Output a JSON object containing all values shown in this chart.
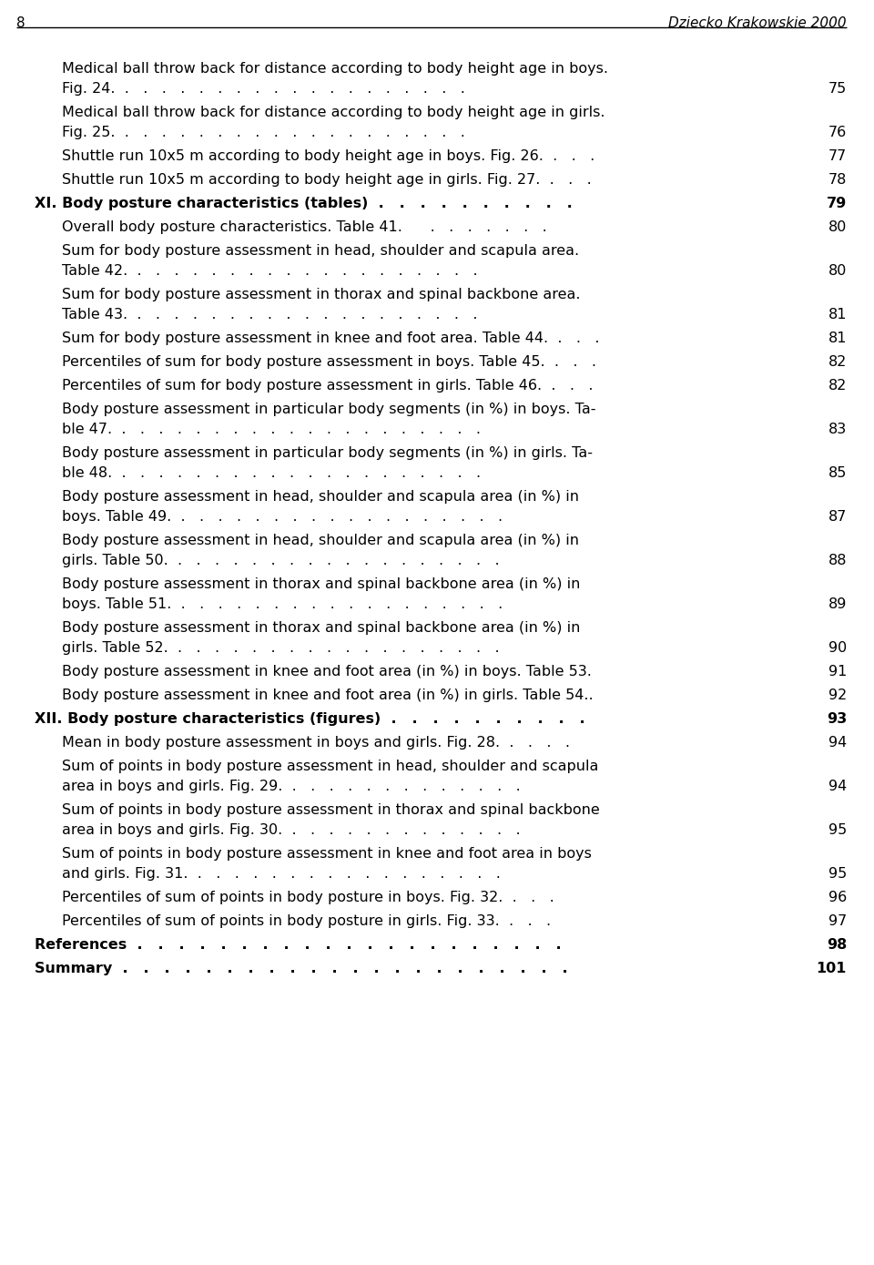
{
  "page_number": "8",
  "header_title": "Dziecko Krakowskie 2000",
  "background_color": "#ffffff",
  "text_color": "#000000",
  "entries": [
    {
      "line1": "Medical ball throw back for distance according to body height age in boys.",
      "line2": "Fig. 24.  .   .   .   .   .   .   .   .   .   .   .   .   .   .   .   .   .   .   .",
      "page": "75",
      "bold": false,
      "two_line": true,
      "indent": true
    },
    {
      "line1": "Medical ball throw back for distance according to body height age in girls.",
      "line2": "Fig. 25.  .   .   .   .   .   .   .   .   .   .   .   .   .   .   .   .   .   .   .",
      "page": "76",
      "bold": false,
      "two_line": true,
      "indent": true
    },
    {
      "line1": "Shuttle run 10x5 m according to body height age in boys. Fig. 26.  .   .   .",
      "line2": null,
      "page": "77",
      "bold": false,
      "two_line": false,
      "indent": true
    },
    {
      "line1": "Shuttle run 10x5 m according to body height age in girls. Fig. 27.  .   .   .",
      "line2": null,
      "page": "78",
      "bold": false,
      "two_line": false,
      "indent": true
    },
    {
      "line1": "XI. Body posture characteristics (tables)  .   .   .   .   .   .   .   .   .   .",
      "line2": null,
      "page": "79",
      "bold": true,
      "two_line": false,
      "indent": false
    },
    {
      "line1": "Overall body posture characteristics. Table 41.      .   .   .   .   .   .   .",
      "line2": null,
      "page": "80",
      "bold": false,
      "two_line": false,
      "indent": true
    },
    {
      "line1": "Sum for body posture assessment in head, shoulder and scapula area.",
      "line2": "Table 42.  .   .   .   .   .   .   .   .   .   .   .   .   .   .   .   .   .   .   .",
      "page": "80",
      "bold": false,
      "two_line": true,
      "indent": true
    },
    {
      "line1": "Sum for body posture assessment in thorax and spinal backbone area.",
      "line2": "Table 43.  .   .   .   .   .   .   .   .   .   .   .   .   .   .   .   .   .   .   .",
      "page": "81",
      "bold": false,
      "two_line": true,
      "indent": true
    },
    {
      "line1": "Sum for body posture assessment in knee and foot area. Table 44.  .   .   .",
      "line2": null,
      "page": "81",
      "bold": false,
      "two_line": false,
      "indent": true
    },
    {
      "line1": "Percentiles of sum for body posture assessment in boys. Table 45.  .   .   .",
      "line2": null,
      "page": "82",
      "bold": false,
      "two_line": false,
      "indent": true
    },
    {
      "line1": "Percentiles of sum for body posture assessment in girls. Table 46.  .   .   .",
      "line2": null,
      "page": "82",
      "bold": false,
      "two_line": false,
      "indent": true
    },
    {
      "line1": "Body posture assessment in particular body segments (in %) in boys. Ta-",
      "line2": "ble 47.  .   .   .   .   .   .   .   .   .   .   .   .   .   .   .   .   .   .   .   .",
      "page": "83",
      "bold": false,
      "two_line": true,
      "indent": true
    },
    {
      "line1": "Body posture assessment in particular body segments (in %) in girls. Ta-",
      "line2": "ble 48.  .   .   .   .   .   .   .   .   .   .   .   .   .   .   .   .   .   .   .   .",
      "page": "85",
      "bold": false,
      "two_line": true,
      "indent": true
    },
    {
      "line1": "Body posture assessment in head, shoulder and scapula area (in %) in",
      "line2": "boys. Table 49.  .   .   .   .   .   .   .   .   .   .   .   .   .   .   .   .   .   .",
      "page": "87",
      "bold": false,
      "two_line": true,
      "indent": true
    },
    {
      "line1": "Body posture assessment in head, shoulder and scapula area (in %) in",
      "line2": "girls. Table 50.  .   .   .   .   .   .   .   .   .   .   .   .   .   .   .   .   .   .",
      "page": "88",
      "bold": false,
      "two_line": true,
      "indent": true
    },
    {
      "line1": "Body posture assessment in thorax and spinal backbone area (in %) in",
      "line2": "boys. Table 51.  .   .   .   .   .   .   .   .   .   .   .   .   .   .   .   .   .   .",
      "page": "89",
      "bold": false,
      "two_line": true,
      "indent": true
    },
    {
      "line1": "Body posture assessment in thorax and spinal backbone area (in %) in",
      "line2": "girls. Table 52.  .   .   .   .   .   .   .   .   .   .   .   .   .   .   .   .   .   .",
      "page": "90",
      "bold": false,
      "two_line": true,
      "indent": true
    },
    {
      "line1": "Body posture assessment in knee and foot area (in %) in boys. Table 53.",
      "line2": null,
      "page": "91",
      "bold": false,
      "two_line": false,
      "indent": true
    },
    {
      "line1": "Body posture assessment in knee and foot area (in %) in girls. Table 54..",
      "line2": null,
      "page": "92",
      "bold": false,
      "two_line": false,
      "indent": true
    },
    {
      "line1": "XII. Body posture characteristics (figures)  .   .   .   .   .   .   .   .   .   .",
      "line2": null,
      "page": "93",
      "bold": true,
      "two_line": false,
      "indent": false
    },
    {
      "line1": "Mean in body posture assessment in boys and girls. Fig. 28.  .   .   .   .",
      "line2": null,
      "page": "94",
      "bold": false,
      "two_line": false,
      "indent": true
    },
    {
      "line1": "Sum of points in body posture assessment in head, shoulder and scapula",
      "line2": "area in boys and girls. Fig. 29.  .   .   .   .   .   .   .   .   .   .   .   .   .",
      "page": "94",
      "bold": false,
      "two_line": true,
      "indent": true
    },
    {
      "line1": "Sum of points in body posture assessment in thorax and spinal backbone",
      "line2": "area in boys and girls. Fig. 30.  .   .   .   .   .   .   .   .   .   .   .   .   .",
      "page": "95",
      "bold": false,
      "two_line": true,
      "indent": true
    },
    {
      "line1": "Sum of points in body posture assessment in knee and foot area in boys",
      "line2": "and girls. Fig. 31.  .   .   .   .   .   .   .   .   .   .   .   .   .   .   .   .   .",
      "page": "95",
      "bold": false,
      "two_line": true,
      "indent": true
    },
    {
      "line1": "Percentiles of sum of points in body posture in boys. Fig. 32.  .   .   .",
      "line2": null,
      "page": "96",
      "bold": false,
      "two_line": false,
      "indent": true
    },
    {
      "line1": "Percentiles of sum of points in body posture in girls. Fig. 33.  .   .   .",
      "line2": null,
      "page": "97",
      "bold": false,
      "two_line": false,
      "indent": true
    },
    {
      "line1": "References  .   .   .   .   .   .   .   .   .   .   .   .   .   .   .   .   .   .   .   .   .",
      "line2": null,
      "page": "98",
      "bold": true,
      "two_line": false,
      "indent": false
    },
    {
      "line1": "Summary  .   .   .   .   .   .   .   .   .   .   .   .   .   .   .   .   .   .   .   .   .   .",
      "line2": null,
      "page": "101",
      "bold": true,
      "two_line": false,
      "indent": false
    }
  ]
}
